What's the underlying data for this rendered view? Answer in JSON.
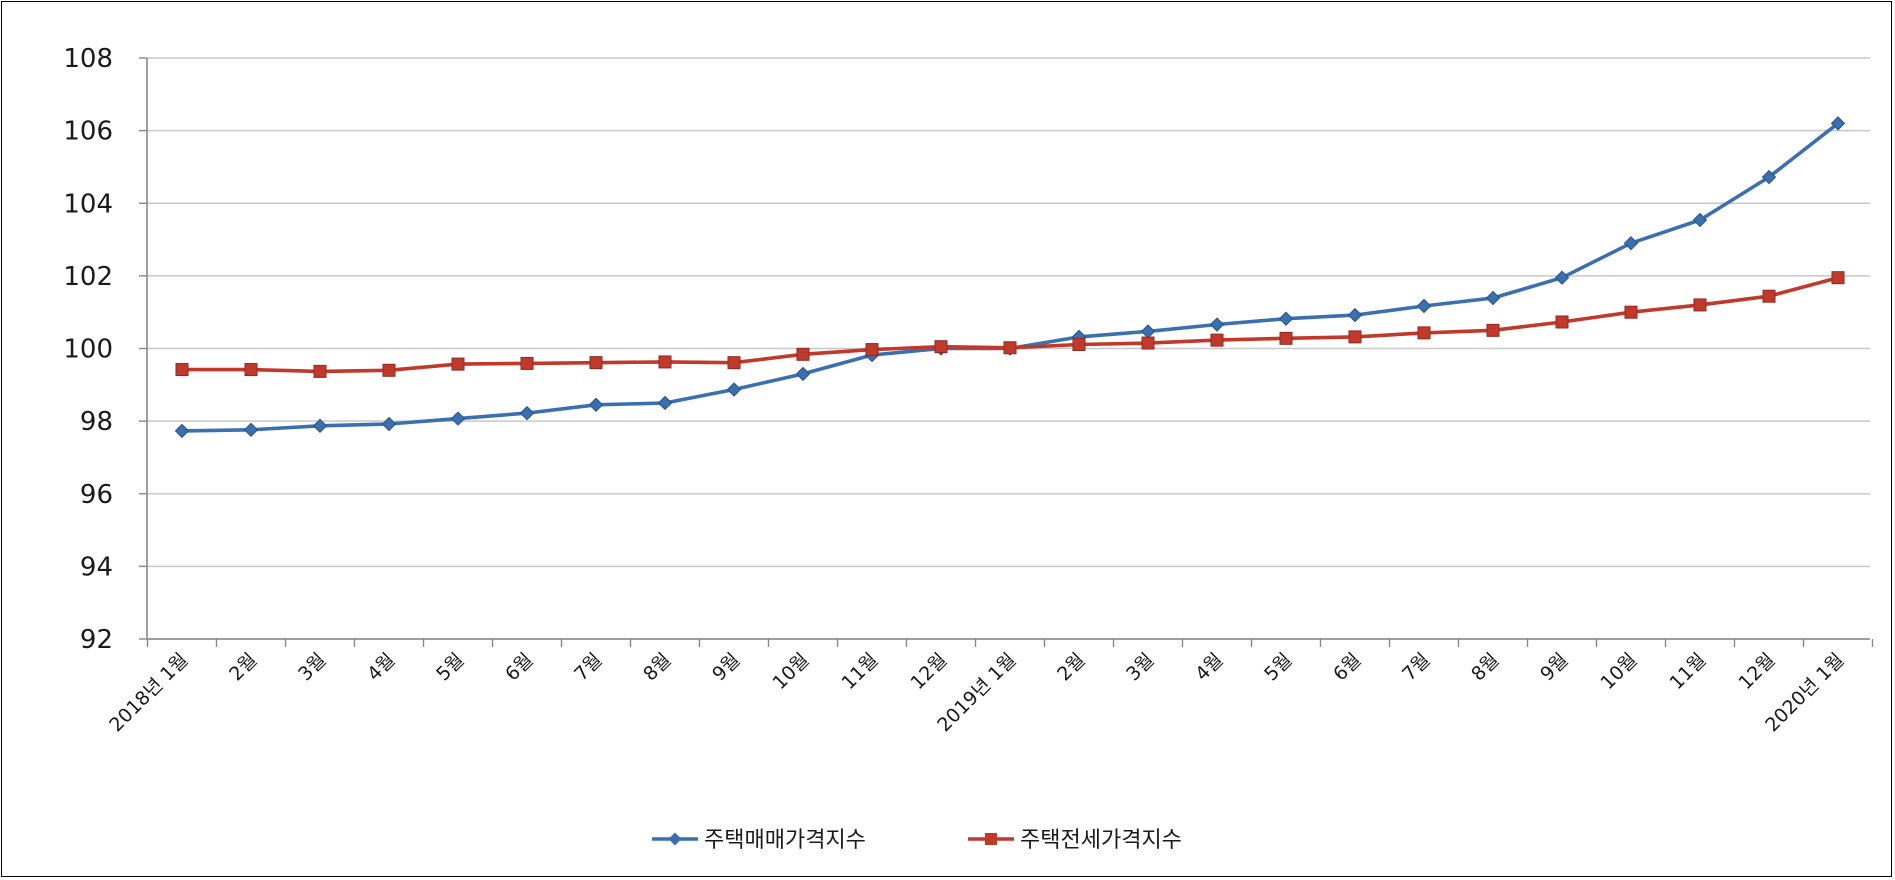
{
  "chart_data": {
    "type": "line",
    "title": "",
    "xlabel": "",
    "ylabel": "",
    "ylim": [
      92,
      108
    ],
    "yticks": [
      92,
      94,
      96,
      98,
      100,
      102,
      104,
      106,
      108
    ],
    "grid": true,
    "legend_position": "bottom",
    "categories": [
      "2018년 1월",
      "2월",
      "3월",
      "4월",
      "5월",
      "6월",
      "7월",
      "8월",
      "9월",
      "10월",
      "11월",
      "12월",
      "2019년 1월",
      "2월",
      "3월",
      "4월",
      "5월",
      "6월",
      "7월",
      "8월",
      "9월",
      "10월",
      "11월",
      "12월",
      "2020년 1월"
    ],
    "series": [
      {
        "name": "주택매매가격지수",
        "color": "#3a6fb0",
        "marker": "diamond",
        "values": [
          97.73,
          97.76,
          97.87,
          97.92,
          98.07,
          98.22,
          98.45,
          98.5,
          98.87,
          99.3,
          99.82,
          100.0,
          100.0,
          100.32,
          100.47,
          100.66,
          100.82,
          100.92,
          101.17,
          101.39,
          101.95,
          102.9,
          103.54,
          104.72,
          106.2
        ]
      },
      {
        "name": "주택전세가격지수",
        "color": "#c0392b",
        "marker": "square",
        "values": [
          99.42,
          99.42,
          99.37,
          99.4,
          99.57,
          99.59,
          99.61,
          99.63,
          99.61,
          99.84,
          99.97,
          100.05,
          100.02,
          100.11,
          100.15,
          100.23,
          100.28,
          100.32,
          100.43,
          100.5,
          100.73,
          101.0,
          101.2,
          101.44,
          101.95
        ]
      }
    ]
  }
}
